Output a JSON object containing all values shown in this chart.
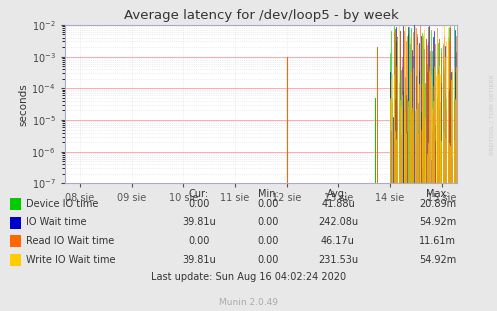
{
  "title": "Average latency for /dev/loop5 - by week",
  "ylabel": "seconds",
  "xlabel_ticks": [
    "08 sie",
    "09 sie",
    "10 sie",
    "11 sie",
    "12 sie",
    "13 sie",
    "14 sie",
    "15 sie"
  ],
  "ymin": 1e-07,
  "ymax": 0.01,
  "bg_color": "#e8e8e8",
  "plot_bg_color": "#ffffff",
  "grid_color_major": "#ffaaaa",
  "grid_color_minor": "#dddddd",
  "legend_items": [
    {
      "label": "Device IO time",
      "color": "#00cc00"
    },
    {
      "label": "IO Wait time",
      "color": "#0000cc"
    },
    {
      "label": "Read IO Wait time",
      "color": "#ff6600"
    },
    {
      "label": "Write IO Wait time",
      "color": "#ffcc00"
    }
  ],
  "legend_table": {
    "headers": [
      "Cur:",
      "Min:",
      "Avg:",
      "Max:"
    ],
    "rows": [
      [
        "0.00",
        "0.00",
        "41.88u",
        "20.89m"
      ],
      [
        "39.81u",
        "0.00",
        "242.08u",
        "54.92m"
      ],
      [
        "0.00",
        "0.00",
        "46.17u",
        "11.61m"
      ],
      [
        "39.81u",
        "0.00",
        "231.53u",
        "54.92m"
      ]
    ]
  },
  "last_update": "Last update: Sun Aug 16 04:02:24 2020",
  "munin_version": "Munin 2.0.49",
  "right_label": "RRDTOOL / TOBI OETIKER"
}
